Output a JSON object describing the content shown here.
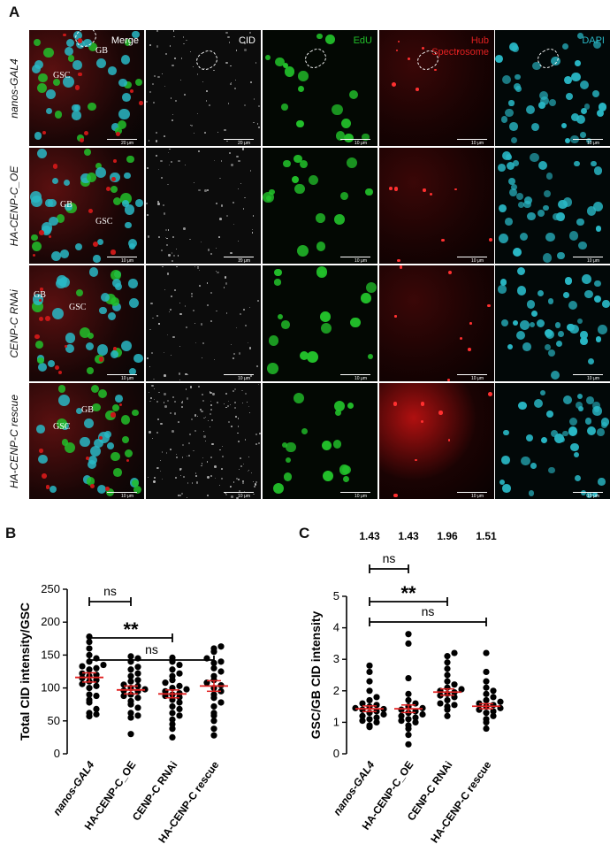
{
  "figure": {
    "panel_a_label": "A",
    "panel_b_label": "B",
    "panel_c_label": "C",
    "columns": [
      "Merge",
      "CID",
      "EdU",
      "Hub",
      "Spectrosome",
      "DAPI"
    ],
    "rows": [
      "nanos-GAL4",
      "HA-CENP-C_OE",
      "CENP-C RNAi",
      "HA-CENP-C rescue"
    ],
    "scale_bar": "10 μm",
    "scale_bar_row1_merge": "20 μm",
    "cell_labels": {
      "gsc": "GSC",
      "gb": "GB"
    },
    "colors": {
      "merge_red": "#c81818",
      "edu_green": "#22c02a",
      "dapi_cyan": "#29b8c6",
      "cid_gray": "#cfcfcf",
      "mean_red": "#e02020"
    }
  },
  "chart_data": [
    {
      "type": "scatter",
      "title": "",
      "ylabel": "Total CID intensity/GSC",
      "xlabel": "",
      "categories": [
        "nanos-GAL4",
        "HA-CENP-C_OE",
        "CENP-C RNAi",
        "HA-CENP-C rescue"
      ],
      "ylim": [
        0,
        250
      ],
      "yticks": [
        0,
        50,
        100,
        150,
        200,
        250
      ],
      "means": [
        116,
        97,
        91,
        103
      ],
      "sem": [
        7,
        6,
        6,
        8
      ],
      "points": [
        [
          57,
          60,
          62,
          68,
          78,
          82,
          88,
          90,
          100,
          103,
          106,
          110,
          112,
          115,
          118,
          120,
          122,
          128,
          130,
          133,
          135,
          140,
          145,
          150,
          160,
          170,
          178
        ],
        [
          30,
          55,
          58,
          62,
          70,
          75,
          80,
          85,
          88,
          90,
          95,
          96,
          98,
          100,
          103,
          105,
          110,
          112,
          118,
          122,
          128,
          132,
          140,
          145,
          148
        ],
        [
          25,
          38,
          45,
          52,
          58,
          62,
          68,
          72,
          78,
          82,
          86,
          88,
          90,
          92,
          95,
          98,
          100,
          103,
          108,
          112,
          118,
          122,
          128,
          135,
          140,
          146
        ],
        [
          28,
          38,
          50,
          58,
          62,
          72,
          78,
          85,
          90,
          95,
          100,
          104,
          108,
          112,
          118,
          125,
          130,
          138,
          140,
          145,
          155,
          160,
          163
        ]
      ],
      "significance": [
        {
          "from": 0,
          "to": 1,
          "label": "ns"
        },
        {
          "from": 0,
          "to": 2,
          "label": "**"
        },
        {
          "from": 0,
          "to": 3,
          "label": "ns"
        }
      ]
    },
    {
      "type": "scatter",
      "title": "",
      "ylabel": "GSC/GB CID intensity",
      "xlabel": "",
      "categories": [
        "nanos-GAL4",
        "HA-CENP-C_OE",
        "CENP-C RNAi",
        "HA-CENP-C rescue"
      ],
      "ylim": [
        0,
        5
      ],
      "yticks": [
        0,
        1,
        2,
        3,
        4,
        5
      ],
      "mean_labels": [
        "1.43",
        "1.43",
        "1.96",
        "1.51"
      ],
      "means": [
        1.43,
        1.43,
        1.96,
        1.51
      ],
      "sem": [
        0.09,
        0.12,
        0.1,
        0.08
      ],
      "points": [
        [
          0.85,
          0.9,
          1.0,
          1.05,
          1.1,
          1.15,
          1.2,
          1.25,
          1.3,
          1.35,
          1.4,
          1.42,
          1.45,
          1.5,
          1.55,
          1.6,
          1.7,
          1.8,
          2.0,
          2.3,
          2.6,
          2.8
        ],
        [
          0.3,
          0.6,
          0.8,
          0.9,
          1.0,
          1.05,
          1.1,
          1.15,
          1.2,
          1.25,
          1.3,
          1.35,
          1.4,
          1.45,
          1.5,
          1.6,
          1.7,
          1.9,
          2.4,
          3.5,
          3.8
        ],
        [
          1.2,
          1.4,
          1.5,
          1.55,
          1.6,
          1.7,
          1.8,
          1.85,
          1.9,
          1.95,
          2.0,
          2.05,
          2.1,
          2.2,
          2.3,
          2.5,
          2.7,
          2.9,
          3.1,
          3.2
        ],
        [
          0.8,
          1.0,
          1.1,
          1.2,
          1.3,
          1.35,
          1.4,
          1.45,
          1.5,
          1.55,
          1.6,
          1.65,
          1.7,
          1.8,
          1.9,
          2.0,
          2.1,
          2.3,
          2.6,
          3.2
        ]
      ],
      "significance": [
        {
          "from": 0,
          "to": 1,
          "label": "ns"
        },
        {
          "from": 0,
          "to": 2,
          "label": "**"
        },
        {
          "from": 0,
          "to": 3,
          "label": "ns"
        }
      ]
    }
  ]
}
